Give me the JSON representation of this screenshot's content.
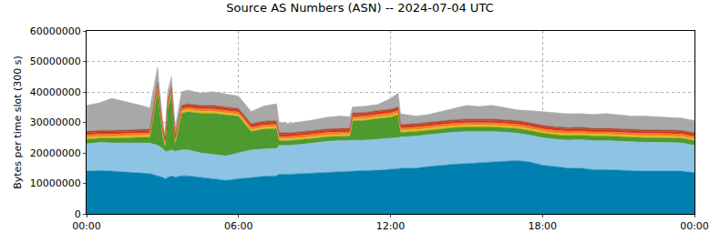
{
  "chart_data": {
    "type": "area",
    "title": "Source AS Numbers (ASN) -- 2024-07-04 UTC",
    "y_label": "Bytes per time slot (300 s)",
    "stacked": true,
    "grid": true,
    "xlim": [
      0,
      24
    ],
    "xticks": [
      {
        "value": 0,
        "label": "00:00"
      },
      {
        "value": 6,
        "label": "06:00"
      },
      {
        "value": 12,
        "label": "12:00"
      },
      {
        "value": 18,
        "label": "18:00"
      },
      {
        "value": 24,
        "label": "00:00"
      }
    ],
    "ylim": [
      0,
      60000000
    ],
    "yticks": [
      0,
      10000000,
      20000000,
      30000000,
      40000000,
      50000000,
      60000000
    ],
    "x": [
      0,
      0.5,
      1,
      1.5,
      2,
      2.5,
      2.8,
      3,
      3.1,
      3.2,
      3.35,
      3.5,
      3.75,
      4,
      4.5,
      5,
      5.5,
      6,
      6.5,
      7,
      7.5,
      7.6,
      8,
      8.5,
      9,
      9.5,
      10,
      10.4,
      10.5,
      11,
      11.5,
      12,
      12.3,
      12.4,
      13,
      13.5,
      14,
      14.5,
      15,
      15.5,
      16,
      16.5,
      17,
      17.5,
      18,
      18.5,
      19,
      19.5,
      20,
      20.5,
      21,
      21.5,
      22,
      22.5,
      23,
      23.5,
      24
    ],
    "series": [
      {
        "color": "#0080b0",
        "values": [
          14000000,
          14200000,
          14000000,
          13800000,
          13500000,
          13200000,
          12500000,
          12000000,
          11500000,
          12000000,
          12500000,
          12000000,
          12500000,
          12500000,
          12000000,
          11500000,
          11000000,
          11500000,
          12000000,
          12300000,
          12500000,
          13000000,
          13000000,
          13200000,
          13500000,
          13800000,
          14000000,
          14000000,
          14000000,
          14200000,
          14300000,
          14500000,
          14800000,
          15000000,
          15000000,
          15500000,
          16000000,
          16300000,
          16500000,
          16800000,
          17000000,
          17300000,
          17500000,
          17000000,
          16000000,
          15500000,
          15000000,
          15000000,
          14500000,
          14500000,
          14300000,
          14200000,
          14000000,
          14000000,
          14000000,
          14000000,
          13500000
        ]
      },
      {
        "color": "#8dc3e3",
        "values": [
          9000000,
          9200000,
          9300000,
          9500000,
          9800000,
          10000000,
          10000000,
          9500000,
          9000000,
          8500000,
          8500000,
          8500000,
          8500000,
          8500000,
          8000000,
          8000000,
          8000000,
          8500000,
          9000000,
          9000000,
          9000000,
          9500000,
          9500000,
          9600000,
          9800000,
          10000000,
          10000000,
          10000000,
          10000000,
          10000000,
          10200000,
          10200000,
          10200000,
          10200000,
          10500000,
          10500000,
          10500000,
          10500000,
          10500000,
          10300000,
          10000000,
          9500000,
          9000000,
          8800000,
          9000000,
          9000000,
          9200000,
          9300000,
          9500000,
          9500000,
          9500000,
          9500000,
          9500000,
          9500000,
          9500000,
          9300000,
          9000000
        ]
      },
      {
        "color": "#4e9a2e",
        "values": [
          1500000,
          1400000,
          1500000,
          1600000,
          1700000,
          2000000,
          18000000,
          4000000,
          1500000,
          14000000,
          18000000,
          2500000,
          12000000,
          12500000,
          13000000,
          13500000,
          13500000,
          12000000,
          6000000,
          6500000,
          6500000,
          1500000,
          1500000,
          1500000,
          1500000,
          1500000,
          1500000,
          1500000,
          6500000,
          6500000,
          6800000,
          7000000,
          7500000,
          1500000,
          1500000,
          1500000,
          1500000,
          1500000,
          1500000,
          1500000,
          1500000,
          1500000,
          1500000,
          1500000,
          1500000,
          1500000,
          1500000,
          1500000,
          1500000,
          1500000,
          1500000,
          1500000,
          1500000,
          1500000,
          1500000,
          1500000,
          1500000
        ]
      },
      {
        "color": "#e8b820",
        "values": [
          600000,
          600000,
          600000,
          600000,
          600000,
          600000,
          600000,
          600000,
          600000,
          600000,
          600000,
          600000,
          600000,
          600000,
          600000,
          600000,
          600000,
          600000,
          600000,
          600000,
          600000,
          600000,
          600000,
          600000,
          600000,
          600000,
          600000,
          600000,
          600000,
          600000,
          600000,
          600000,
          600000,
          600000,
          600000,
          600000,
          600000,
          600000,
          600000,
          600000,
          600000,
          600000,
          600000,
          600000,
          600000,
          600000,
          600000,
          600000,
          600000,
          600000,
          600000,
          600000,
          600000,
          600000,
          600000,
          600000,
          600000
        ]
      },
      {
        "color": "#f08020",
        "values": [
          800000,
          800000,
          800000,
          800000,
          800000,
          800000,
          800000,
          800000,
          800000,
          800000,
          800000,
          800000,
          800000,
          800000,
          800000,
          800000,
          800000,
          800000,
          800000,
          800000,
          800000,
          800000,
          800000,
          800000,
          800000,
          800000,
          800000,
          800000,
          800000,
          800000,
          800000,
          800000,
          800000,
          800000,
          800000,
          800000,
          800000,
          800000,
          800000,
          800000,
          800000,
          800000,
          800000,
          800000,
          800000,
          800000,
          800000,
          800000,
          800000,
          800000,
          800000,
          800000,
          800000,
          800000,
          800000,
          800000,
          800000
        ]
      },
      {
        "color": "#d83020",
        "values": [
          700000,
          700000,
          700000,
          700000,
          700000,
          700000,
          700000,
          700000,
          700000,
          700000,
          700000,
          700000,
          700000,
          700000,
          700000,
          700000,
          700000,
          700000,
          700000,
          700000,
          700000,
          700000,
          700000,
          700000,
          700000,
          700000,
          700000,
          700000,
          700000,
          700000,
          700000,
          700000,
          700000,
          700000,
          700000,
          700000,
          700000,
          700000,
          700000,
          700000,
          700000,
          700000,
          700000,
          700000,
          700000,
          700000,
          700000,
          700000,
          700000,
          700000,
          700000,
          700000,
          700000,
          700000,
          700000,
          700000,
          700000
        ]
      },
      {
        "color": "#a05030",
        "values": [
          500000,
          500000,
          500000,
          500000,
          500000,
          500000,
          500000,
          500000,
          500000,
          500000,
          500000,
          500000,
          500000,
          500000,
          500000,
          500000,
          500000,
          500000,
          500000,
          500000,
          500000,
          500000,
          500000,
          500000,
          500000,
          500000,
          500000,
          500000,
          500000,
          500000,
          500000,
          500000,
          500000,
          500000,
          500000,
          500000,
          500000,
          500000,
          500000,
          500000,
          500000,
          500000,
          500000,
          500000,
          500000,
          500000,
          500000,
          500000,
          500000,
          500000,
          500000,
          500000,
          500000,
          500000,
          500000,
          500000,
          500000
        ]
      },
      {
        "color": "#a8a8a8",
        "values": [
          8500000,
          9000000,
          10500000,
          9500000,
          8300000,
          7000000,
          5000000,
          3000000,
          1500000,
          3000000,
          3500000,
          3000000,
          4500000,
          4500000,
          4000000,
          4500000,
          4300000,
          4000000,
          4000000,
          5000000,
          5500000,
          3500000,
          3000000,
          3300000,
          3500000,
          3800000,
          4000000,
          3800000,
          2000000,
          2000000,
          2000000,
          3500000,
          4500000,
          3500000,
          2500000,
          2500000,
          3000000,
          3500000,
          4500000,
          4000000,
          4500000,
          4000000,
          3500000,
          4000000,
          4500000,
          4500000,
          4500000,
          4500000,
          4500000,
          4800000,
          4500000,
          4300000,
          4500000,
          4300000,
          4200000,
          4000000,
          4000000
        ]
      }
    ]
  }
}
